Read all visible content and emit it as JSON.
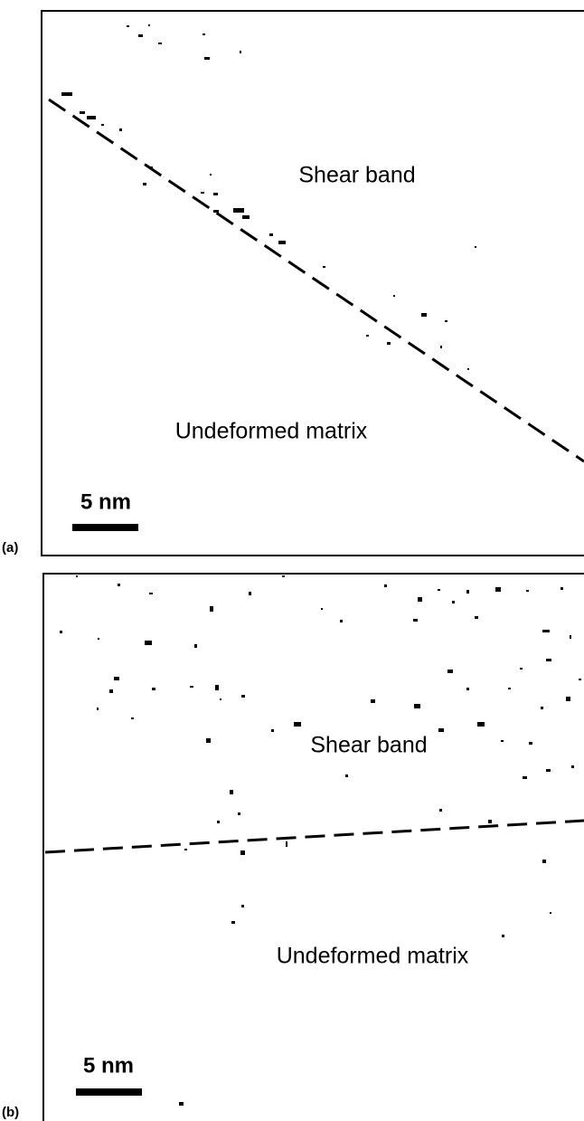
{
  "figure": {
    "panels": [
      {
        "label": "(a)",
        "upper_region": "Shear band",
        "lower_region": "Undeformed matrix",
        "scale_bar": "5 nm"
      },
      {
        "label": "(b)",
        "upper_region": "Shear band",
        "lower_region": "Undeformed matrix",
        "scale_bar": "5 nm"
      }
    ]
  }
}
